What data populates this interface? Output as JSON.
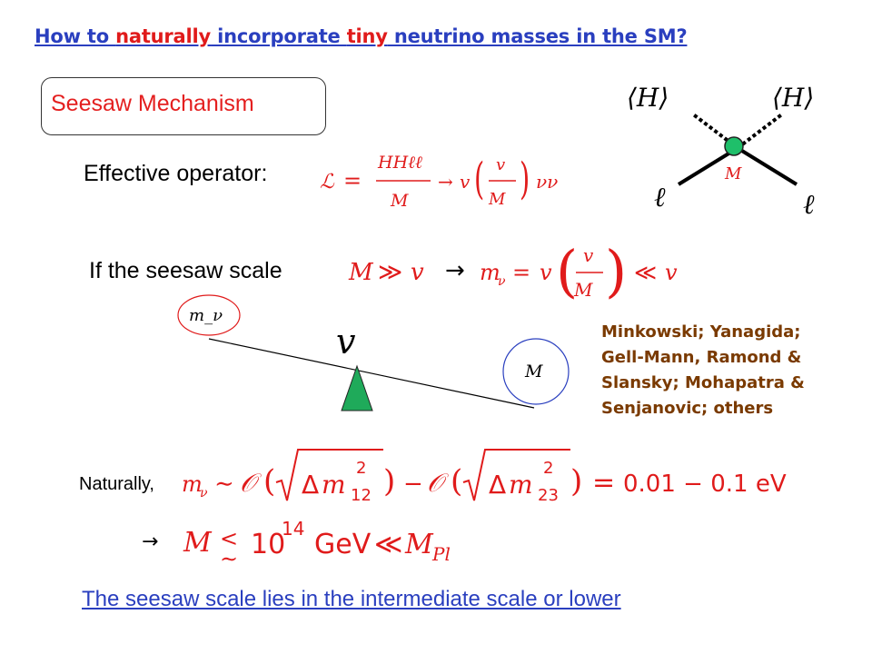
{
  "title": {
    "part1": "How to ",
    "highlight1": "naturally",
    "part2": " incorporate ",
    "highlight2": "tiny",
    "part3": " neutrino masses in the SM?"
  },
  "box_label": "Seesaw Mechanism",
  "effective_operator_label": "Effective operator:",
  "seesaw_scale_label": "If the seesaw scale",
  "arrow_symbol": "→",
  "diagram": {
    "higgs_left": "⟨H⟩",
    "higgs_right": "⟨H⟩",
    "mass_label": "M",
    "lepton_left": "ℓ",
    "lepton_right": "ℓ"
  },
  "balance": {
    "light_label": "m_ν",
    "heavy_label": "M",
    "pivot_label": "v"
  },
  "references": [
    "Minkowski; Yanagida;",
    "Gell-Mann, Ramond &",
    "Slansky; Mohapatra &",
    "Senjanovic; others"
  ],
  "naturally_label": "Naturally,",
  "equation_values": "0.01 − 0.1 eV",
  "bound_values": "10",
  "bound_exponent": "14",
  "bound_unit": "GeV",
  "conclusion": "The seesaw scale lies in the intermediate scale or lower",
  "colors": {
    "title_blue": "#2a3fbf",
    "highlight_red": "#e01b1b",
    "box_text_red": "#e41f1f",
    "math_red": "#e01b1b",
    "reference_brown": "#7a3a00",
    "vertex_green": "#1fbf6a",
    "pivot_green": "#1faa5a"
  }
}
